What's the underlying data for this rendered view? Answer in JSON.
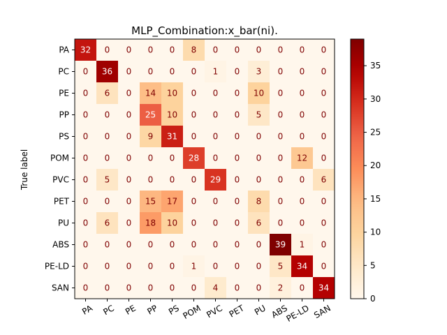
{
  "chart_data": {
    "type": "heatmap",
    "title": "MLP_Combination:x_bar(ni).",
    "xlabel": "",
    "ylabel": "True label",
    "x_labels": [
      "PA",
      "PC",
      "PE",
      "PP",
      "PS",
      "POM",
      "PVC",
      "PET",
      "PU",
      "ABS",
      "PE-LD",
      "SAN"
    ],
    "y_labels": [
      "PA",
      "PC",
      "PE",
      "PP",
      "PS",
      "POM",
      "PVC",
      "PET",
      "PU",
      "ABS",
      "PE-LD",
      "SAN"
    ],
    "values": [
      [
        32,
        0,
        0,
        0,
        0,
        8,
        0,
        0,
        0,
        0,
        0,
        0
      ],
      [
        0,
        36,
        0,
        0,
        0,
        0,
        1,
        0,
        3,
        0,
        0,
        0
      ],
      [
        0,
        6,
        0,
        14,
        10,
        0,
        0,
        0,
        10,
        0,
        0,
        0
      ],
      [
        0,
        0,
        0,
        25,
        10,
        0,
        0,
        0,
        5,
        0,
        0,
        0
      ],
      [
        0,
        0,
        0,
        9,
        31,
        0,
        0,
        0,
        0,
        0,
        0,
        0
      ],
      [
        0,
        0,
        0,
        0,
        0,
        28,
        0,
        0,
        0,
        0,
        12,
        0
      ],
      [
        0,
        5,
        0,
        0,
        0,
        0,
        29,
        0,
        0,
        0,
        0,
        6
      ],
      [
        0,
        0,
        0,
        15,
        17,
        0,
        0,
        0,
        8,
        0,
        0,
        0
      ],
      [
        0,
        6,
        0,
        18,
        10,
        0,
        0,
        0,
        6,
        0,
        0,
        0
      ],
      [
        0,
        0,
        0,
        0,
        0,
        0,
        0,
        0,
        0,
        39,
        1,
        0
      ],
      [
        0,
        0,
        0,
        0,
        0,
        1,
        0,
        0,
        0,
        5,
        34,
        0
      ],
      [
        0,
        0,
        0,
        0,
        0,
        0,
        4,
        0,
        0,
        2,
        0,
        34
      ]
    ],
    "colormap": "OrRd",
    "colorbar": {
      "range": [
        0,
        39
      ],
      "ticks": [
        0,
        5,
        10,
        15,
        20,
        25,
        30,
        35
      ]
    },
    "grid": false
  }
}
